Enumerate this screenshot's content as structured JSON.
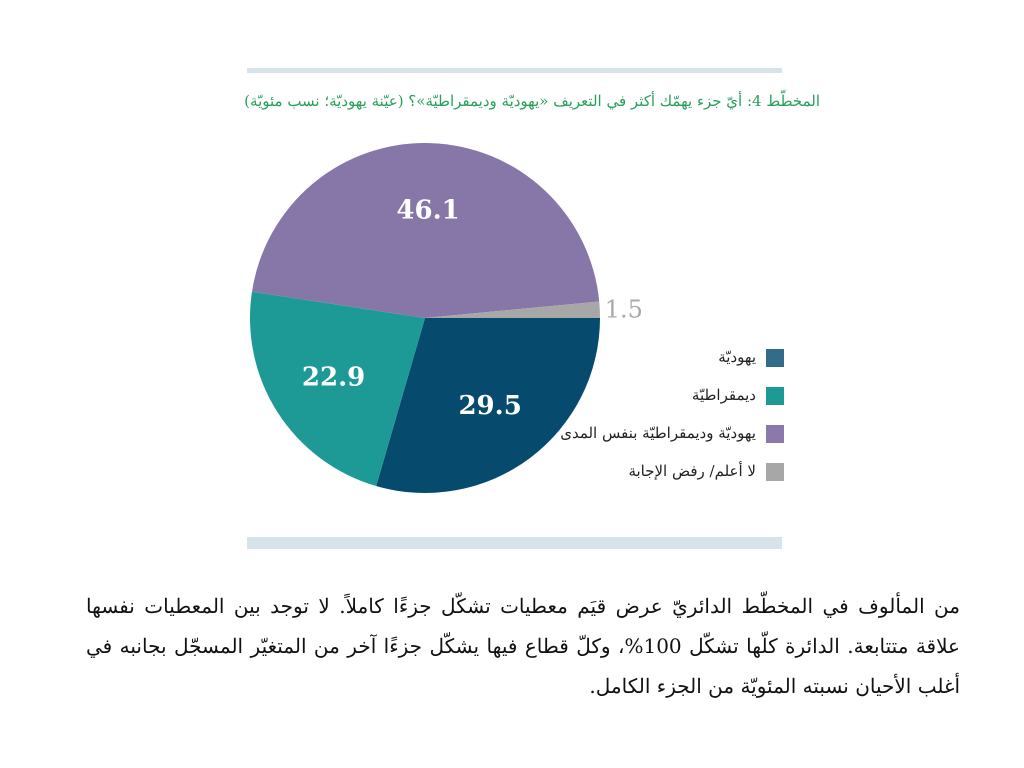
{
  "chart_title": "المخطّط 4: أيّ جزء يهمّك أكثر في التعريف «يهوديّة وديمقراطيّة»؟ (عيّنة يهوديّة؛ نسب مئويّة)",
  "chart_data": {
    "type": "pie",
    "title": "المخطّط 4: أيّ جزء يهمّك أكثر في التعريف «يهوديّة وديمقراطيّة»؟ (عيّنة يهوديّة؛ نسب مئويّة)",
    "slices": [
      {
        "label": "يهوديّة",
        "value": 29.5,
        "color": "#064a6e"
      },
      {
        "label": "ديمقراطيّة",
        "value": 22.9,
        "color": "#1e9a96"
      },
      {
        "label": "يهوديّة وديمقراطيّة بنفس المدى",
        "value": 46.1,
        "color": "#8776a8"
      },
      {
        "label": "لا أعلم/ رفض الإجابة",
        "value": 1.5,
        "color": "#a7a7a7"
      }
    ],
    "legend_position": "right",
    "legend_colors": [
      "#336c8a",
      "#1e9a96",
      "#8a79aa",
      "#a7a7a7"
    ]
  },
  "paragraph": "من المألوف في المخطّط الدائريّ عرض قيَم معطيات تشكّل جزءًا كاملاً. لا توجد بين المعطيات نفسها علاقة متتابعة. الدائرة كلّها تشكّل 100%، وكلّ قطاع فيها يشكّل جزءًا آخر من المتغيّر المسجّل بجانبه في أغلب الأحيان نسبته المئويّة من الجزء الكامل."
}
